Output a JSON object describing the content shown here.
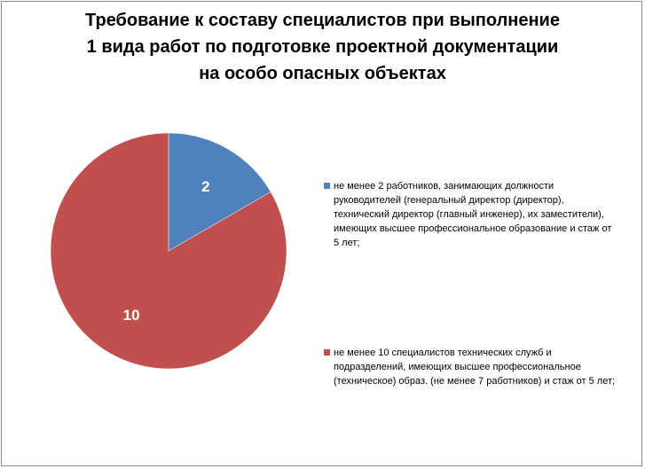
{
  "chart_data": {
    "type": "pie",
    "title_lines": [
      "Требование к составу специалистов при выполнение",
      "1 вида работ по подготовке проектной документации",
      "на особо опасных объектах"
    ],
    "slices": [
      {
        "value": 2,
        "label": "2",
        "color": "#4f81bd",
        "legend": "не менее 2  работников, занимающих должности руководителей (генеральный директор (директор), технический директор (главный  инженер), их заместители), имеющих высшее профессиональное образование и стаж от 5 лет;"
      },
      {
        "value": 10,
        "label": "10",
        "color": "#c0504d",
        "legend": "не менее 10 специалистов технических служб и подразделений, имеющих высшее  профессиональное (техническое) образ. (не  менее 7 работников) и стаж от 5 лет;"
      }
    ],
    "legend_position": "right"
  }
}
